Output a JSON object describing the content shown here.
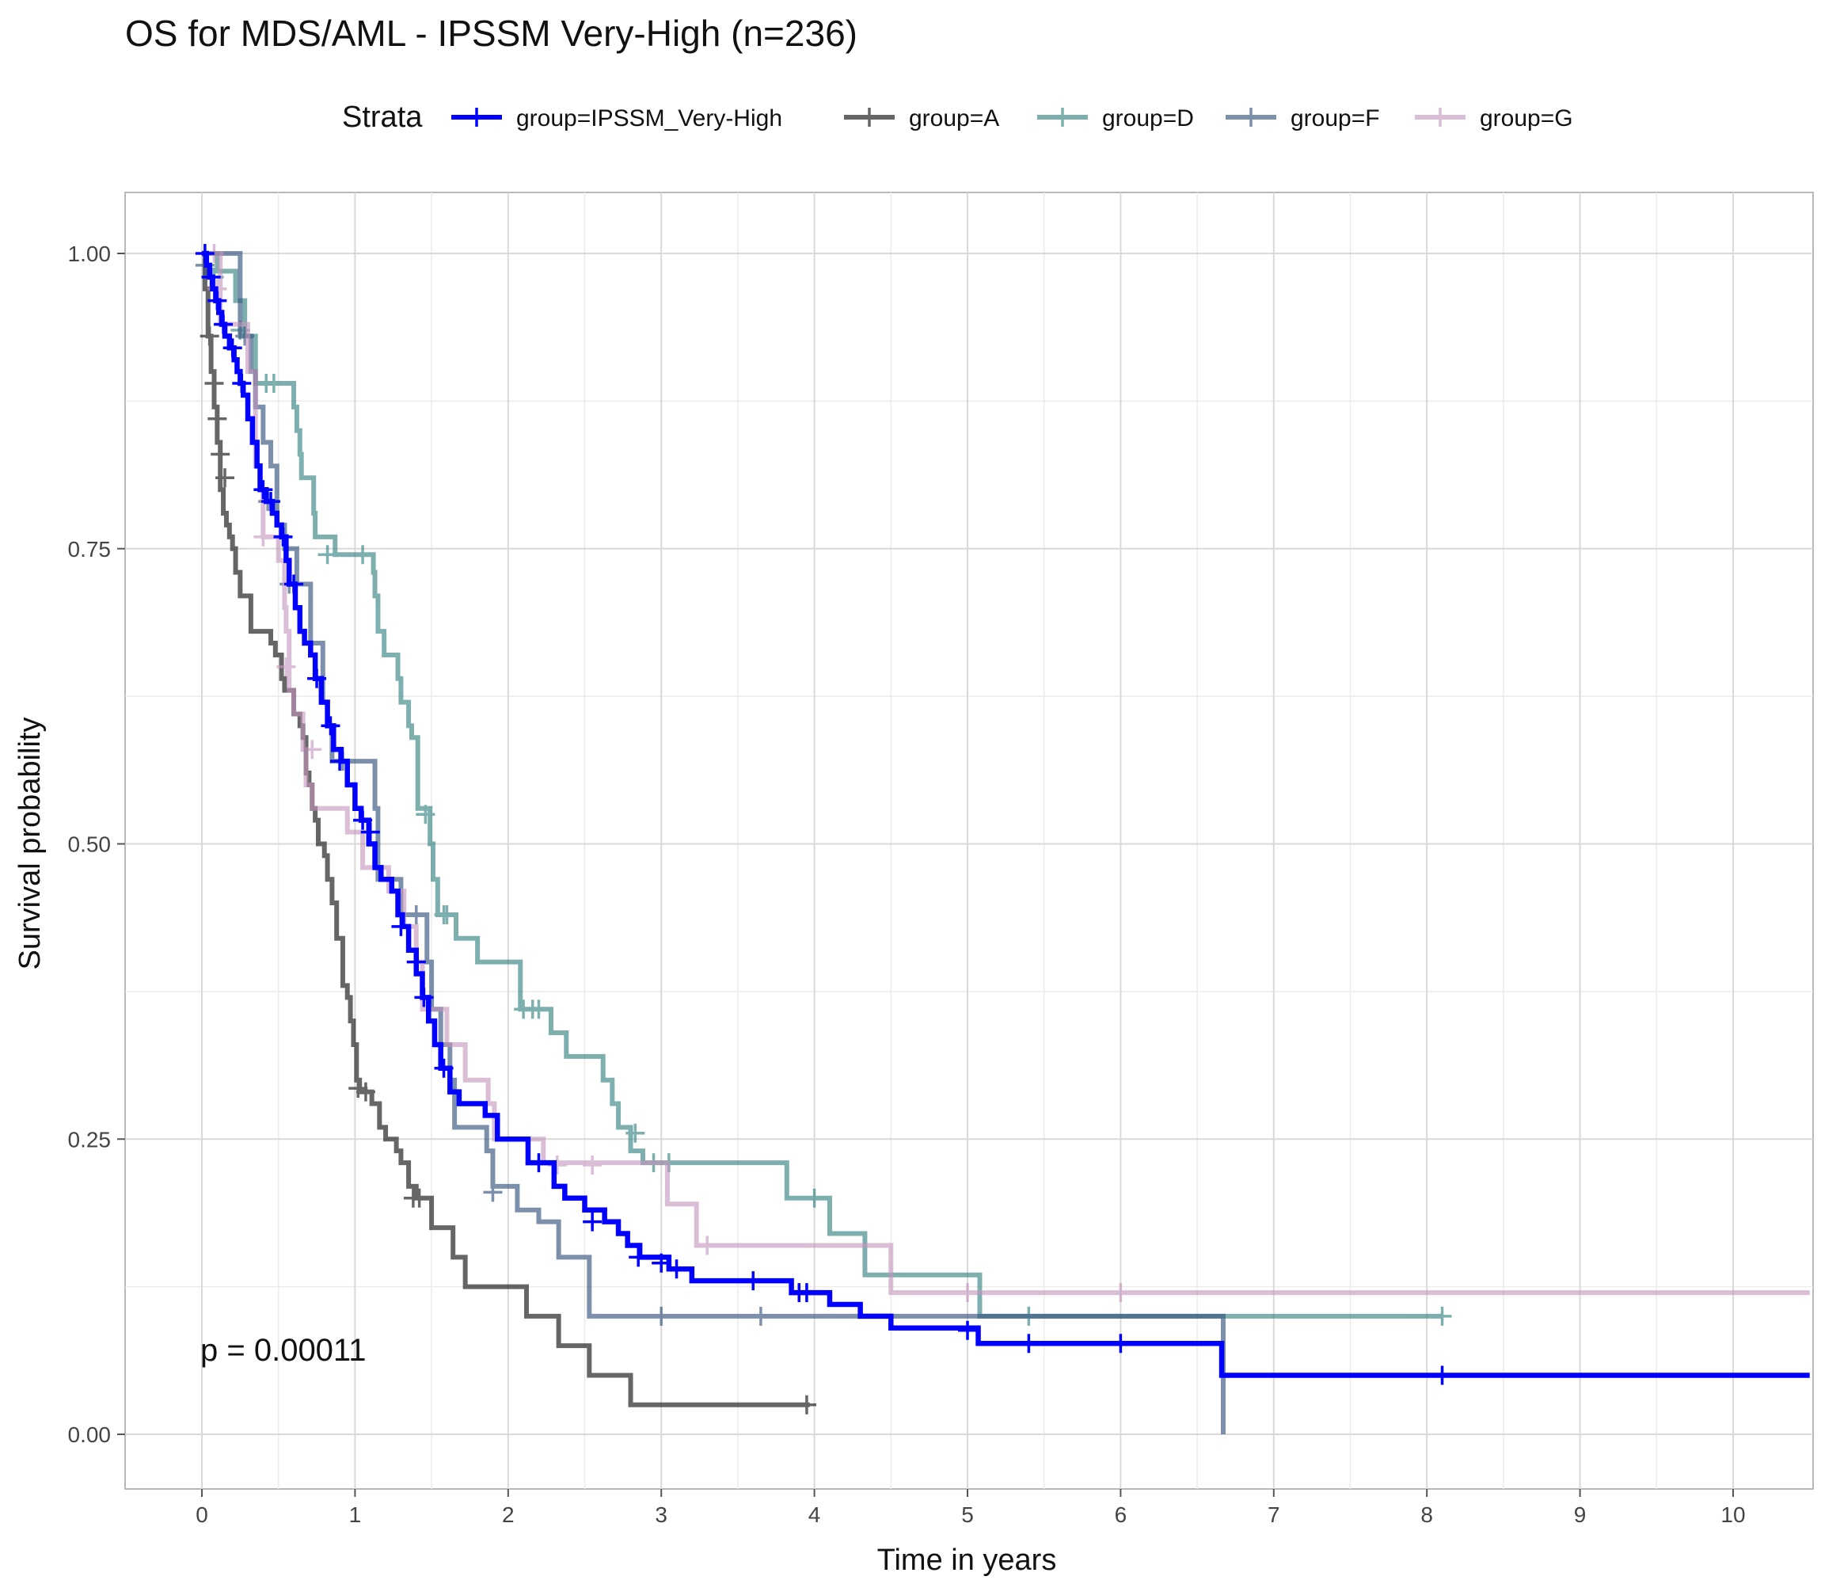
{
  "chart_data": {
    "type": "line",
    "title": "OS for MDS/AML - IPSSM Very-High (n=236)",
    "xlabel": "Time in years",
    "ylabel": "Survival probability",
    "xlim": [
      -0.5,
      10.5
    ],
    "ylim": [
      -0.05,
      1.05
    ],
    "x_ticks": [
      "0",
      "1",
      "2",
      "3",
      "4",
      "5",
      "6",
      "7",
      "8",
      "9",
      "10"
    ],
    "y_ticks": [
      "0.00",
      "0.25",
      "0.50",
      "0.75",
      "1.00"
    ],
    "grid": true,
    "legend_position": "top",
    "legend_title": "Strata",
    "annotation": "p = 0.00011",
    "series": [
      {
        "name": "group=IPSSM_Very-High",
        "color": "#0000ff",
        "opacity": 1.0,
        "steps": [
          [
            0,
            1.0
          ],
          [
            0.03,
            0.99
          ],
          [
            0.05,
            0.98
          ],
          [
            0.07,
            0.97
          ],
          [
            0.09,
            0.96
          ],
          [
            0.11,
            0.95
          ],
          [
            0.13,
            0.94
          ],
          [
            0.15,
            0.93
          ],
          [
            0.18,
            0.92
          ],
          [
            0.21,
            0.91
          ],
          [
            0.23,
            0.9
          ],
          [
            0.25,
            0.89
          ],
          [
            0.27,
            0.88
          ],
          [
            0.3,
            0.86
          ],
          [
            0.33,
            0.84
          ],
          [
            0.36,
            0.82
          ],
          [
            0.38,
            0.8
          ],
          [
            0.42,
            0.79
          ],
          [
            0.46,
            0.78
          ],
          [
            0.49,
            0.77
          ],
          [
            0.52,
            0.76
          ],
          [
            0.55,
            0.74
          ],
          [
            0.57,
            0.72
          ],
          [
            0.61,
            0.7
          ],
          [
            0.64,
            0.68
          ],
          [
            0.67,
            0.67
          ],
          [
            0.71,
            0.66
          ],
          [
            0.74,
            0.64
          ],
          [
            0.78,
            0.62
          ],
          [
            0.82,
            0.6
          ],
          [
            0.86,
            0.58
          ],
          [
            0.91,
            0.57
          ],
          [
            0.95,
            0.55
          ],
          [
            1.0,
            0.53
          ],
          [
            1.04,
            0.52
          ],
          [
            1.09,
            0.5
          ],
          [
            1.13,
            0.48
          ],
          [
            1.17,
            0.47
          ],
          [
            1.24,
            0.46
          ],
          [
            1.28,
            0.44
          ],
          [
            1.31,
            0.43
          ],
          [
            1.35,
            0.41
          ],
          [
            1.4,
            0.39
          ],
          [
            1.44,
            0.37
          ],
          [
            1.48,
            0.35
          ],
          [
            1.52,
            0.33
          ],
          [
            1.56,
            0.31
          ],
          [
            1.62,
            0.29
          ],
          [
            1.68,
            0.28
          ],
          [
            1.85,
            0.27
          ],
          [
            1.93,
            0.25
          ],
          [
            2.13,
            0.23
          ],
          [
            2.3,
            0.21
          ],
          [
            2.37,
            0.2
          ],
          [
            2.5,
            0.19
          ],
          [
            2.63,
            0.18
          ],
          [
            2.72,
            0.17
          ],
          [
            2.78,
            0.16
          ],
          [
            2.86,
            0.15
          ],
          [
            3.05,
            0.14
          ],
          [
            3.2,
            0.13
          ],
          [
            3.85,
            0.12
          ],
          [
            4.1,
            0.11
          ],
          [
            4.3,
            0.1
          ],
          [
            4.5,
            0.09
          ],
          [
            5.07,
            0.077
          ],
          [
            6.66,
            0.05
          ],
          [
            10.5,
            0.05
          ]
        ],
        "censor": [
          [
            0.02,
            1.0
          ],
          [
            0.06,
            0.98
          ],
          [
            0.1,
            0.96
          ],
          [
            0.14,
            0.94
          ],
          [
            0.2,
            0.92
          ],
          [
            0.26,
            0.89
          ],
          [
            0.4,
            0.8
          ],
          [
            0.45,
            0.79
          ],
          [
            0.53,
            0.76
          ],
          [
            0.6,
            0.72
          ],
          [
            0.75,
            0.64
          ],
          [
            0.84,
            0.6
          ],
          [
            0.9,
            0.57
          ],
          [
            1.05,
            0.52
          ],
          [
            1.1,
            0.51
          ],
          [
            1.3,
            0.43
          ],
          [
            1.4,
            0.4
          ],
          [
            1.45,
            0.37
          ],
          [
            1.58,
            0.31
          ],
          [
            2.2,
            0.23
          ],
          [
            2.55,
            0.18
          ],
          [
            2.85,
            0.15
          ],
          [
            3.0,
            0.145
          ],
          [
            3.1,
            0.14
          ],
          [
            3.6,
            0.13
          ],
          [
            3.9,
            0.12
          ],
          [
            3.95,
            0.12
          ],
          [
            5.0,
            0.088
          ],
          [
            5.4,
            0.077
          ],
          [
            6.0,
            0.077
          ],
          [
            8.1,
            0.05
          ]
        ]
      },
      {
        "name": "group=A",
        "color": "#333333",
        "opacity": 0.75,
        "steps": [
          [
            0,
            1.0
          ],
          [
            0.02,
            0.97
          ],
          [
            0.04,
            0.93
          ],
          [
            0.06,
            0.9
          ],
          [
            0.08,
            0.87
          ],
          [
            0.1,
            0.84
          ],
          [
            0.12,
            0.8
          ],
          [
            0.14,
            0.78
          ],
          [
            0.16,
            0.77
          ],
          [
            0.18,
            0.76
          ],
          [
            0.2,
            0.75
          ],
          [
            0.22,
            0.73
          ],
          [
            0.25,
            0.71
          ],
          [
            0.32,
            0.68
          ],
          [
            0.45,
            0.67
          ],
          [
            0.48,
            0.66
          ],
          [
            0.52,
            0.64
          ],
          [
            0.54,
            0.63
          ],
          [
            0.6,
            0.61
          ],
          [
            0.64,
            0.6
          ],
          [
            0.66,
            0.59
          ],
          [
            0.68,
            0.56
          ],
          [
            0.7,
            0.55
          ],
          [
            0.72,
            0.53
          ],
          [
            0.74,
            0.52
          ],
          [
            0.76,
            0.5
          ],
          [
            0.8,
            0.49
          ],
          [
            0.82,
            0.47
          ],
          [
            0.85,
            0.45
          ],
          [
            0.88,
            0.42
          ],
          [
            0.92,
            0.38
          ],
          [
            0.95,
            0.37
          ],
          [
            0.97,
            0.35
          ],
          [
            0.99,
            0.33
          ],
          [
            1.01,
            0.3
          ],
          [
            1.03,
            0.29
          ],
          [
            1.11,
            0.28
          ],
          [
            1.16,
            0.26
          ],
          [
            1.2,
            0.25
          ],
          [
            1.27,
            0.24
          ],
          [
            1.3,
            0.23
          ],
          [
            1.35,
            0.21
          ],
          [
            1.4,
            0.2
          ],
          [
            1.5,
            0.175
          ],
          [
            1.64,
            0.15
          ],
          [
            1.72,
            0.125
          ],
          [
            2.12,
            0.1
          ],
          [
            2.33,
            0.075
          ],
          [
            2.53,
            0.05
          ],
          [
            2.8,
            0.025
          ],
          [
            3.97,
            0.025
          ]
        ],
        "censor": [
          [
            0.05,
            0.93
          ],
          [
            0.08,
            0.89
          ],
          [
            0.1,
            0.86
          ],
          [
            0.12,
            0.83
          ],
          [
            0.15,
            0.81
          ],
          [
            1.02,
            0.293
          ],
          [
            1.07,
            0.29
          ],
          [
            1.38,
            0.2
          ],
          [
            1.42,
            0.2
          ],
          [
            3.95,
            0.025
          ]
        ]
      },
      {
        "name": "group=D",
        "color": "#2f7f7f",
        "opacity": 0.62,
        "steps": [
          [
            0,
            1.0
          ],
          [
            0.1,
            0.985
          ],
          [
            0.22,
            0.96
          ],
          [
            0.28,
            0.93
          ],
          [
            0.35,
            0.89
          ],
          [
            0.6,
            0.87
          ],
          [
            0.62,
            0.85
          ],
          [
            0.64,
            0.83
          ],
          [
            0.65,
            0.81
          ],
          [
            0.73,
            0.78
          ],
          [
            0.74,
            0.76
          ],
          [
            0.87,
            0.745
          ],
          [
            1.08,
            0.745
          ],
          [
            1.12,
            0.73
          ],
          [
            1.13,
            0.71
          ],
          [
            1.15,
            0.68
          ],
          [
            1.19,
            0.66
          ],
          [
            1.28,
            0.64
          ],
          [
            1.3,
            0.62
          ],
          [
            1.35,
            0.6
          ],
          [
            1.37,
            0.59
          ],
          [
            1.41,
            0.53
          ],
          [
            1.49,
            0.5
          ],
          [
            1.51,
            0.47
          ],
          [
            1.54,
            0.44
          ],
          [
            1.64,
            0.44
          ],
          [
            1.66,
            0.42
          ],
          [
            1.8,
            0.4
          ],
          [
            2.08,
            0.36
          ],
          [
            2.28,
            0.34
          ],
          [
            2.38,
            0.32
          ],
          [
            2.62,
            0.3
          ],
          [
            2.68,
            0.28
          ],
          [
            2.72,
            0.26
          ],
          [
            2.8,
            0.24
          ],
          [
            2.88,
            0.23
          ],
          [
            3.82,
            0.2
          ],
          [
            4.1,
            0.17
          ],
          [
            4.33,
            0.135
          ],
          [
            5.08,
            0.1
          ],
          [
            8.1,
            0.1
          ]
        ],
        "censor": [
          [
            0.08,
            0.98
          ],
          [
            0.25,
            0.935
          ],
          [
            0.42,
            0.89
          ],
          [
            0.47,
            0.89
          ],
          [
            0.82,
            0.745
          ],
          [
            1.05,
            0.745
          ],
          [
            1.46,
            0.525
          ],
          [
            1.58,
            0.44
          ],
          [
            1.6,
            0.44
          ],
          [
            2.1,
            0.36
          ],
          [
            2.16,
            0.36
          ],
          [
            2.2,
            0.36
          ],
          [
            2.83,
            0.255
          ],
          [
            2.95,
            0.23
          ],
          [
            3.05,
            0.23
          ],
          [
            4.0,
            0.2
          ],
          [
            5.4,
            0.1
          ],
          [
            8.1,
            0.1
          ]
        ]
      },
      {
        "name": "group=F",
        "color": "#38557f",
        "opacity": 0.65,
        "steps": [
          [
            0,
            1.0
          ],
          [
            0.25,
            0.93
          ],
          [
            0.32,
            0.9
          ],
          [
            0.35,
            0.87
          ],
          [
            0.4,
            0.84
          ],
          [
            0.45,
            0.82
          ],
          [
            0.49,
            0.77
          ],
          [
            0.54,
            0.75
          ],
          [
            0.62,
            0.72
          ],
          [
            0.71,
            0.67
          ],
          [
            0.79,
            0.62
          ],
          [
            0.82,
            0.6
          ],
          [
            0.85,
            0.57
          ],
          [
            1.13,
            0.53
          ],
          [
            1.15,
            0.47
          ],
          [
            1.3,
            0.44
          ],
          [
            1.47,
            0.4
          ],
          [
            1.5,
            0.36
          ],
          [
            1.56,
            0.33
          ],
          [
            1.62,
            0.3
          ],
          [
            1.65,
            0.26
          ],
          [
            1.86,
            0.24
          ],
          [
            1.9,
            0.21
          ],
          [
            2.06,
            0.19
          ],
          [
            2.2,
            0.18
          ],
          [
            2.33,
            0.15
          ],
          [
            2.53,
            0.1
          ],
          [
            6.67,
            0.0
          ]
        ],
        "censor": [
          [
            0.02,
            0.99
          ],
          [
            0.28,
            0.93
          ],
          [
            0.43,
            0.79
          ],
          [
            0.57,
            0.72
          ],
          [
            0.92,
            0.57
          ],
          [
            1.4,
            0.44
          ],
          [
            1.9,
            0.205
          ],
          [
            3.0,
            0.1
          ],
          [
            3.65,
            0.1
          ]
        ]
      },
      {
        "name": "group=G",
        "color": "#c596bd",
        "opacity": 0.62,
        "steps": [
          [
            0,
            1.0
          ],
          [
            0.12,
            0.94
          ],
          [
            0.3,
            0.9
          ],
          [
            0.35,
            0.82
          ],
          [
            0.38,
            0.8
          ],
          [
            0.4,
            0.76
          ],
          [
            0.5,
            0.74
          ],
          [
            0.54,
            0.7
          ],
          [
            0.55,
            0.68
          ],
          [
            0.57,
            0.63
          ],
          [
            0.6,
            0.61
          ],
          [
            0.66,
            0.58
          ],
          [
            0.68,
            0.55
          ],
          [
            0.72,
            0.53
          ],
          [
            0.95,
            0.51
          ],
          [
            1.05,
            0.48
          ],
          [
            1.22,
            0.46
          ],
          [
            1.32,
            0.43
          ],
          [
            1.4,
            0.4
          ],
          [
            1.44,
            0.36
          ],
          [
            1.6,
            0.33
          ],
          [
            1.72,
            0.3
          ],
          [
            1.87,
            0.28
          ],
          [
            1.91,
            0.25
          ],
          [
            2.23,
            0.23
          ],
          [
            3.04,
            0.195
          ],
          [
            3.23,
            0.16
          ],
          [
            4.5,
            0.12
          ],
          [
            10.5,
            0.12
          ]
        ],
        "censor": [
          [
            0.08,
            1.0
          ],
          [
            0.1,
            0.97
          ],
          [
            0.4,
            0.76
          ],
          [
            0.55,
            0.65
          ],
          [
            0.72,
            0.58
          ],
          [
            2.32,
            0.228
          ],
          [
            2.55,
            0.228
          ],
          [
            3.3,
            0.16
          ],
          [
            5.0,
            0.12
          ],
          [
            6.0,
            0.12
          ]
        ]
      }
    ]
  }
}
